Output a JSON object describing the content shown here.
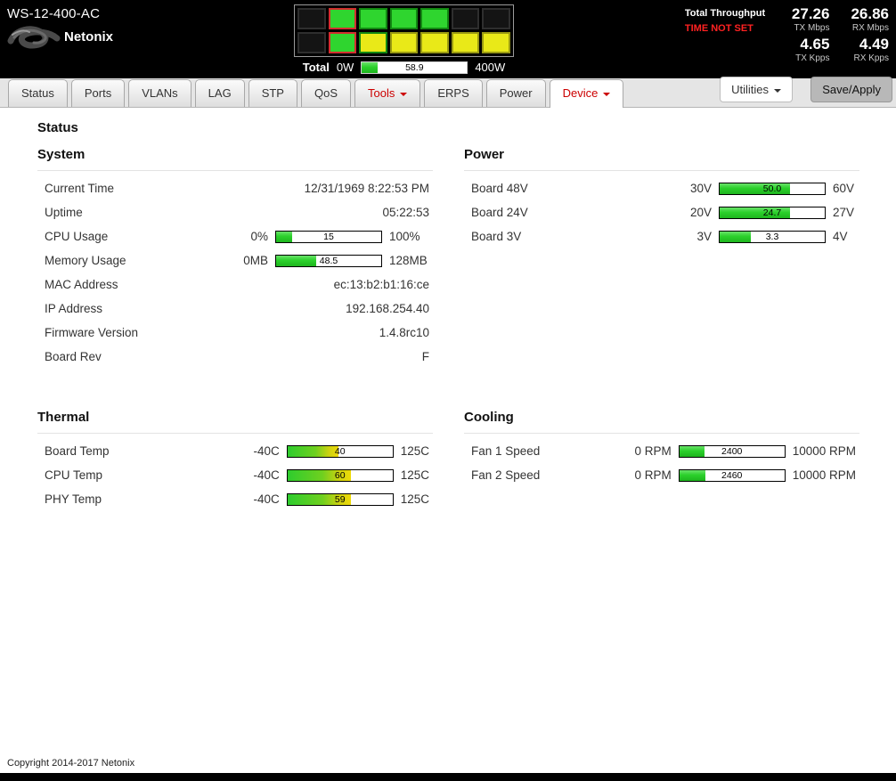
{
  "header": {
    "device_model": "WS-12-400-AC",
    "brand": "Netonix",
    "ports": {
      "cells": [
        {
          "bg": "#141414",
          "border": "#2e2e2e"
        },
        {
          "bg": "#2fd52f",
          "border": "#d22f2f"
        },
        {
          "bg": "#2fd52f",
          "border": "#128812"
        },
        {
          "bg": "#2fd52f",
          "border": "#128812"
        },
        {
          "bg": "#2fd52f",
          "border": "#128812"
        },
        {
          "bg": "#141414",
          "border": "#2e2e2e"
        },
        {
          "bg": "#141414",
          "border": "#2e2e2e"
        },
        {
          "bg": "#141414",
          "border": "#2e2e2e"
        },
        {
          "bg": "#2fd52f",
          "border": "#d22f2f"
        },
        {
          "bg": "#e9e918",
          "border": "#128812"
        },
        {
          "bg": "#e9e918",
          "border": "#9a9a12"
        },
        {
          "bg": "#e9e918",
          "border": "#9a9a12"
        },
        {
          "bg": "#e9e918",
          "border": "#9a9a12"
        },
        {
          "bg": "#e9e918",
          "border": "#9a9a12"
        }
      ]
    },
    "total_power": {
      "label": "Total",
      "min": "0W",
      "max": "400W",
      "value": "58.9",
      "pct": 14.7
    },
    "throughput": {
      "title": "Total Throughput",
      "time_status": "TIME NOT SET",
      "stats": [
        {
          "value": "27.26",
          "label": "TX Mbps"
        },
        {
          "value": "26.86",
          "label": "RX Mbps"
        },
        {
          "value": "4.65",
          "label": "TX Kpps"
        },
        {
          "value": "4.49",
          "label": "RX Kpps"
        }
      ]
    }
  },
  "nav": {
    "tabs": [
      {
        "label": "Status"
      },
      {
        "label": "Ports"
      },
      {
        "label": "VLANs"
      },
      {
        "label": "LAG"
      },
      {
        "label": "STP"
      },
      {
        "label": "QoS"
      },
      {
        "label": "Tools",
        "dropdown": true
      },
      {
        "label": "ERPS"
      },
      {
        "label": "Power"
      },
      {
        "label": "Device",
        "dropdown": true,
        "active": true
      }
    ],
    "utilities_label": "Utilities",
    "save_apply_label": "Save/Apply"
  },
  "page": {
    "title": "Status"
  },
  "sections": {
    "system": {
      "title": "System",
      "rows": [
        {
          "label": "Current Time",
          "value": "12/31/1969 8:22:53 PM"
        },
        {
          "label": "Uptime",
          "value": "05:22:53"
        },
        {
          "label": "CPU Usage",
          "min": "0%",
          "max": "100%",
          "value": "15",
          "pct": 15
        },
        {
          "label": "Memory Usage",
          "min": "0MB",
          "max": "128MB",
          "value": "48.5",
          "pct": 37.9
        },
        {
          "label": "MAC Address",
          "value": "ec:13:b2:b1:16:ce"
        },
        {
          "label": "IP Address",
          "value": "192.168.254.40"
        },
        {
          "label": "Firmware Version",
          "value": "1.4.8rc10"
        },
        {
          "label": "Board Rev",
          "value": "F"
        }
      ]
    },
    "power": {
      "title": "Power",
      "rows": [
        {
          "label": "Board 48V",
          "min": "30V",
          "max": "60V",
          "value": "50.0",
          "pct": 66.7
        },
        {
          "label": "Board 24V",
          "min": "20V",
          "max": "27V",
          "value": "24.7",
          "pct": 67.1
        },
        {
          "label": "Board 3V",
          "min": "3V",
          "max": "4V",
          "value": "3.3",
          "pct": 30
        }
      ]
    },
    "thermal": {
      "title": "Thermal",
      "rows": [
        {
          "label": "Board Temp",
          "min": "-40C",
          "max": "125C",
          "value": "40",
          "pct": 48.5
        },
        {
          "label": "CPU Temp",
          "min": "-40C",
          "max": "125C",
          "value": "60",
          "pct": 60.6
        },
        {
          "label": "PHY Temp",
          "min": "-40C",
          "max": "125C",
          "value": "59",
          "pct": 60
        }
      ]
    },
    "cooling": {
      "title": "Cooling",
      "rows": [
        {
          "label": "Fan 1 Speed",
          "min": "0 RPM",
          "max": "10000 RPM",
          "value": "2400",
          "pct": 24
        },
        {
          "label": "Fan 2 Speed",
          "min": "0 RPM",
          "max": "10000 RPM",
          "value": "2460",
          "pct": 24.6
        }
      ]
    }
  },
  "footer": {
    "copyright": "Copyright 2014-2017 Netonix"
  },
  "colors": {
    "header_bg": "#000000",
    "accent_red": "#cc0000",
    "alert_red": "#ff2222",
    "bar_green": "#2bd02b",
    "port_green": "#2fd52f",
    "port_yellow": "#e9e918",
    "save_button_bg": "#b8b8b8"
  }
}
